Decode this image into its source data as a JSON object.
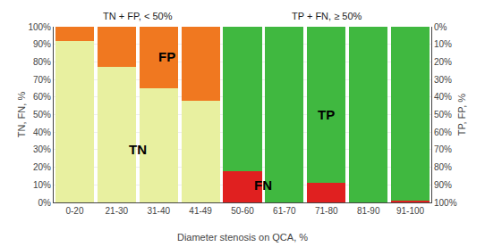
{
  "chart_data": {
    "type": "bar",
    "stacked": true,
    "grid": true,
    "legend": "none",
    "categories": [
      "0-20",
      "21-30",
      "31-40",
      "41-49",
      "50-60",
      "61-70",
      "71-80",
      "81-90",
      "91-100"
    ],
    "series": [
      {
        "color": "#e8f0a0",
        "values": [
          92,
          77,
          65,
          58,
          0,
          0,
          0,
          0,
          0
        ]
      },
      {
        "color": "#f07820",
        "values": [
          8,
          23,
          35,
          42,
          0,
          0,
          0,
          0,
          0
        ]
      },
      {
        "color": "#e02020",
        "values": [
          0,
          0,
          0,
          0,
          18,
          0,
          11,
          0,
          1
        ]
      },
      {
        "color": "#40b840",
        "values": [
          0,
          0,
          0,
          0,
          82,
          100,
          89,
          100,
          99
        ]
      }
    ],
    "xlabel": "Diameter stenosis on QCA, %",
    "ylabel": "TN, FN, %",
    "y2label": "TP, FP, %",
    "ylim": [
      0,
      100
    ],
    "yticks": [
      {
        "value": 0,
        "label": "0%"
      },
      {
        "value": 10,
        "label": "10%"
      },
      {
        "value": 20,
        "label": "20%"
      },
      {
        "value": 30,
        "label": "30%"
      },
      {
        "value": 40,
        "label": "40%"
      },
      {
        "value": 50,
        "label": "50%"
      },
      {
        "value": 60,
        "label": "60%"
      },
      {
        "value": 70,
        "label": "70%"
      },
      {
        "value": 80,
        "label": "80%"
      },
      {
        "value": 90,
        "label": "90%"
      },
      {
        "value": 100,
        "label": "100%"
      }
    ],
    "y2lim": [
      100,
      0
    ],
    "y2ticks": [
      {
        "value": 0,
        "label": "0%"
      },
      {
        "value": 10,
        "label": "10%"
      },
      {
        "value": 20,
        "label": "20%"
      },
      {
        "value": 30,
        "label": "30%"
      },
      {
        "value": 40,
        "label": "40%"
      },
      {
        "value": 50,
        "label": "50%"
      },
      {
        "value": 60,
        "label": "60%"
      },
      {
        "value": 70,
        "label": "70%"
      },
      {
        "value": 80,
        "label": "80%"
      },
      {
        "value": 90,
        "label": "90%"
      },
      {
        "value": 100,
        "label": "100%"
      }
    ],
    "group_titles": [
      {
        "text": "TN + FP, < 50%",
        "from": "0-20",
        "to": "41-49"
      },
      {
        "text": "TP + FN, ≥ 50%",
        "from": "50-60",
        "to": "91-100"
      }
    ],
    "annotations": [
      {
        "text": "TN",
        "x": 1.5,
        "y": 30
      },
      {
        "text": "FP",
        "x": 2.2,
        "y": 83
      },
      {
        "text": "TP",
        "x": 6.0,
        "y": 50
      },
      {
        "text": "FN",
        "x": 4.5,
        "y": 10
      }
    ]
  }
}
